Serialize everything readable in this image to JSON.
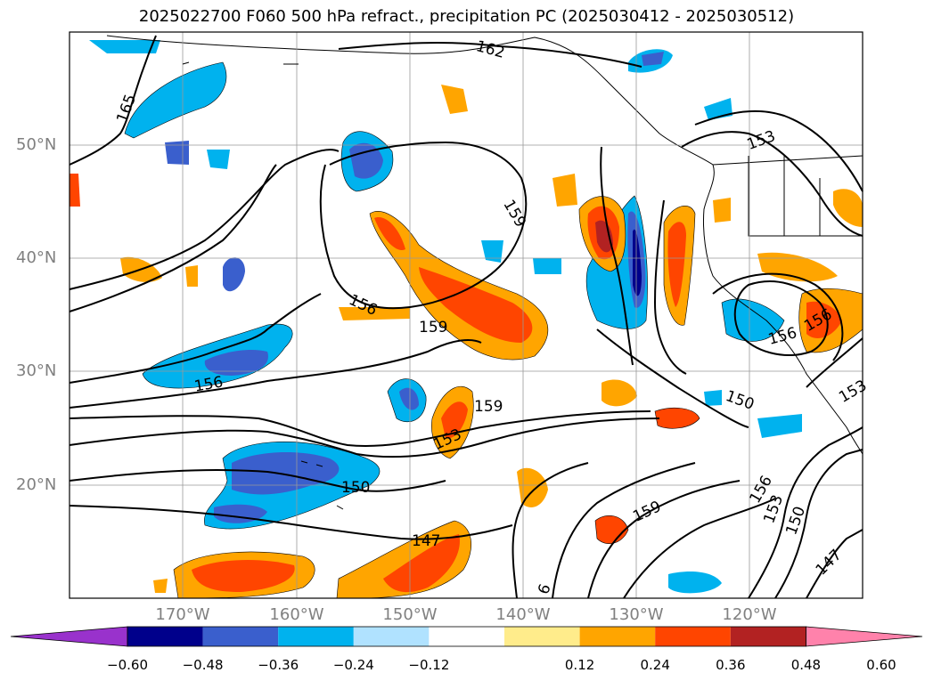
{
  "title": "2025022700 F060 500 hPa refract., precipitation PC (2025030412 - 2025030512)",
  "lat_labels": [
    "50°N",
    "40°N",
    "30°N",
    "20°N"
  ],
  "lon_labels": [
    "170°W",
    "160°W",
    "150°W",
    "140°W",
    "130°W",
    "120°W"
  ],
  "contour_labels": [
    "162",
    "165",
    "153",
    "159",
    "156",
    "159",
    "156",
    "159",
    "156",
    "156",
    "153",
    "150",
    "150",
    "159",
    "156",
    "153",
    "150",
    "147",
    "147",
    "153",
    "6"
  ],
  "colorbar": {
    "ticks": [
      "−0.60",
      "−0.48",
      "−0.36",
      "−0.24",
      "−0.12",
      "0.12",
      "0.24",
      "0.36",
      "0.48",
      "0.60"
    ],
    "colors": {
      "under": "#9932cc",
      "bins": [
        "#00008b",
        "#3a5fcd",
        "#00b2ee",
        "#b0e2ff",
        "#ffffff",
        "#ffec8b",
        "#ffa500",
        "#ff4500",
        "#b22222"
      ],
      "over": "#ff82ab"
    }
  },
  "colors": {
    "neg_strong": "#00008b",
    "neg_med": "#3a5fcd",
    "neg": "#00b2ee",
    "neg_light": "#b0e2ff",
    "pos_light": "#ffec8b",
    "pos": "#ffa500",
    "pos_med": "#ff4500",
    "pos_strong": "#b22222"
  }
}
